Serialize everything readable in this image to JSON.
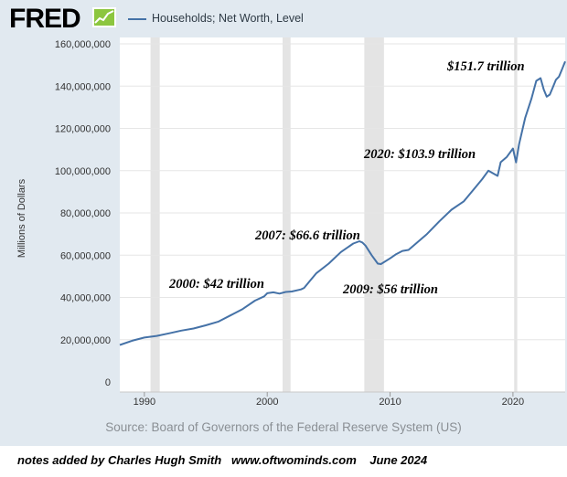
{
  "header": {
    "logo_text": "FRED",
    "legend_label": "Households; Net Worth, Level"
  },
  "colors": {
    "series_line": "#4572a7",
    "recession_band": "#e4e4e4",
    "frame_bg": "#e1e9f0"
  },
  "chart_data": {
    "type": "line",
    "title": "",
    "xlabel": "",
    "ylabel": "Millions of Dollars",
    "ylim": [
      0,
      160000000
    ],
    "xlim": [
      1988.0,
      2024.25
    ],
    "grid": true,
    "legend_placement": "top-left",
    "x_ticks": [
      1990,
      2000,
      2010,
      2020
    ],
    "y_ticks": [
      {
        "value": 0,
        "label": "0"
      },
      {
        "value": 20000000,
        "label": "20,000,000"
      },
      {
        "value": 40000000,
        "label": "40,000,000"
      },
      {
        "value": 60000000,
        "label": "60,000,000"
      },
      {
        "value": 80000000,
        "label": "80,000,000"
      },
      {
        "value": 100000000,
        "label": "100,000,000"
      },
      {
        "value": 120000000,
        "label": "120,000,000"
      },
      {
        "value": 140000000,
        "label": "140,000,000"
      },
      {
        "value": 160000000,
        "label": "160,000,000"
      }
    ],
    "recessions": [
      {
        "start": 1990.5,
        "end": 1991.25
      },
      {
        "start": 2001.25,
        "end": 2001.9
      },
      {
        "start": 2007.9,
        "end": 2009.5
      },
      {
        "start": 2020.1,
        "end": 2020.35
      }
    ],
    "series": [
      {
        "x": [
          1988.0,
          1989.0,
          1990.0,
          1991.0,
          1992.0,
          1993.0,
          1994.0,
          1995.0,
          1996.0,
          1997.0,
          1998.0,
          1999.0,
          1999.75,
          2000.0,
          2000.5,
          2001.0,
          2001.5,
          2002.0,
          2002.75,
          2003.0,
          2003.5,
          2004.0,
          2005.0,
          2006.0,
          2007.0,
          2007.5,
          2007.75,
          2008.0,
          2008.5,
          2009.0,
          2009.25,
          2010.0,
          2010.5,
          2011.0,
          2011.5,
          2012.0,
          2013.0,
          2014.0,
          2015.0,
          2016.0,
          2017.0,
          2017.5,
          2018.0,
          2018.75,
          2019.0,
          2019.5,
          2020.0,
          2020.25,
          2020.5,
          2021.0,
          2021.5,
          2021.9,
          2022.25,
          2022.5,
          2022.75,
          2023.0,
          2023.25,
          2023.5,
          2023.75,
          2024.0,
          2024.25
        ],
        "y": [
          17500000,
          19500000,
          21000000,
          21800000,
          23000000,
          24300000,
          25300000,
          26800000,
          28500000,
          31500000,
          34500000,
          38500000,
          40500000,
          42000000,
          42400000,
          41800000,
          42600000,
          42800000,
          43800000,
          44500000,
          48000000,
          51500000,
          56000000,
          61500000,
          65500000,
          66600000,
          66000000,
          64500000,
          60000000,
          56000000,
          55800000,
          58500000,
          60500000,
          62000000,
          62500000,
          65000000,
          70000000,
          76000000,
          81500000,
          85500000,
          92500000,
          96000000,
          100000000,
          97500000,
          104000000,
          106500000,
          110500000,
          103900000,
          112500000,
          125000000,
          134000000,
          142500000,
          143800000,
          138500000,
          135000000,
          136000000,
          139500000,
          143000000,
          144500000,
          148000000,
          151700000
        ]
      }
    ],
    "annotations": [
      {
        "text": "$151.7 trillion",
        "x": 2023.9,
        "y": 151700000
      },
      {
        "text": "2020: $103.9 trillion",
        "x": 2020.0,
        "y": 103900000
      },
      {
        "text": "2007: $66.6 trillion",
        "x": 2007.5,
        "y": 66600000
      },
      {
        "text": "2000: $42 trillion",
        "x": 2000.0,
        "y": 42000000
      },
      {
        "text": "2009: $56 trillion",
        "x": 2009.25,
        "y": 56000000
      }
    ]
  },
  "source_text": "Source: Board of Governors of the Federal Reserve System (US)",
  "footer_note": "notes added by Charles Hugh Smith   www.oftwominds.com    June 2024"
}
